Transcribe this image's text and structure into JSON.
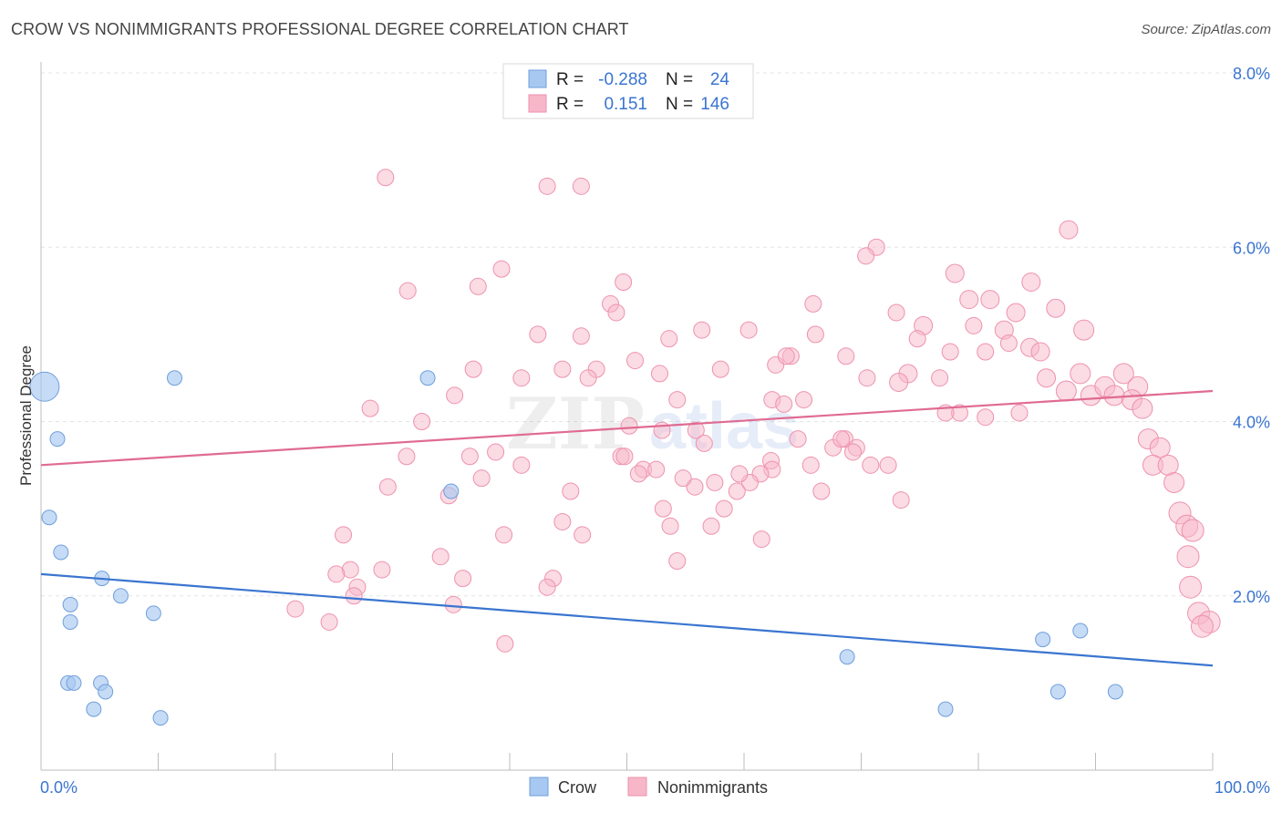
{
  "title": "CROW VS NONIMMIGRANTS PROFESSIONAL DEGREE CORRELATION CHART",
  "source": "Source: ZipAtlas.com",
  "watermark": {
    "part1": "ZIP",
    "part2": "atlas"
  },
  "chart_data": {
    "type": "scatter",
    "title": "CROW VS NONIMMIGRANTS PROFESSIONAL DEGREE CORRELATION CHART",
    "ylabel": "Professional Degree",
    "xlabel": "",
    "xlim": [
      0,
      100
    ],
    "ylim": [
      0,
      8.0
    ],
    "x_tick_labels": {
      "left": "0.0%",
      "right": "100.0%"
    },
    "y_ticks": [
      {
        "value": 2.0,
        "label": "2.0%"
      },
      {
        "value": 4.0,
        "label": "4.0%"
      },
      {
        "value": 6.0,
        "label": "6.0%"
      },
      {
        "value": 8.0,
        "label": "8.0%"
      }
    ],
    "grid": true,
    "legend_position": "top-center",
    "colors": {
      "crow_fill": "#a7c8f0",
      "crow_stroke": "#6f9fdc",
      "crow_line": "#3a75d0",
      "non_fill": "#f7b7c9",
      "non_stroke": "#ee92ae",
      "non_line": "#e06b92",
      "value_text": "#3a75d0"
    },
    "stats": [
      {
        "r_label": "R = ",
        "r_value": "-0.288",
        "n_label": "N = ",
        "n_value": "24"
      },
      {
        "r_label": "R = ",
        "r_value": "0.151",
        "n_label": "N = ",
        "n_value": "146"
      }
    ],
    "series": [
      {
        "name": "Crow",
        "trend": {
          "x": [
            0,
            100
          ],
          "y": [
            2.25,
            1.2
          ]
        },
        "points": [
          [
            0.3,
            4.4,
            16
          ],
          [
            1.4,
            3.8,
            8
          ],
          [
            0.7,
            2.9,
            8
          ],
          [
            1.7,
            2.5,
            8
          ],
          [
            2.5,
            1.9,
            8
          ],
          [
            2.5,
            1.7,
            8
          ],
          [
            2.3,
            1.0,
            8
          ],
          [
            2.8,
            1.0,
            8
          ],
          [
            5.1,
            1.0,
            8
          ],
          [
            5.5,
            0.9,
            8
          ],
          [
            4.5,
            0.7,
            8
          ],
          [
            5.2,
            2.2,
            8
          ],
          [
            6.8,
            2.0,
            8
          ],
          [
            9.6,
            1.8,
            8
          ],
          [
            10.2,
            0.6,
            8
          ],
          [
            11.4,
            4.5,
            8
          ],
          [
            33.0,
            4.5,
            8
          ],
          [
            35.0,
            3.2,
            8
          ],
          [
            68.8,
            1.3,
            8
          ],
          [
            77.2,
            0.7,
            8
          ],
          [
            85.5,
            1.5,
            8
          ],
          [
            86.8,
            0.9,
            8
          ],
          [
            88.7,
            1.6,
            8
          ],
          [
            91.7,
            0.9,
            8
          ]
        ]
      },
      {
        "name": "Nonimmigrants",
        "trend": {
          "x": [
            0,
            100
          ],
          "y": [
            3.5,
            4.35
          ]
        },
        "points": [
          [
            29.4,
            6.8,
            9
          ],
          [
            43.2,
            6.7,
            9
          ],
          [
            46.1,
            6.7,
            9
          ],
          [
            87.7,
            6.2,
            10
          ],
          [
            71.3,
            6.0,
            9
          ],
          [
            70.4,
            5.9,
            9
          ],
          [
            78.0,
            5.7,
            10
          ],
          [
            84.5,
            5.6,
            10
          ],
          [
            79.2,
            5.4,
            10
          ],
          [
            81.0,
            5.4,
            10
          ],
          [
            86.6,
            5.3,
            10
          ],
          [
            83.2,
            5.25,
            10
          ],
          [
            73.0,
            5.25,
            9
          ],
          [
            75.3,
            5.1,
            10
          ],
          [
            79.6,
            5.1,
            9
          ],
          [
            82.2,
            5.05,
            10
          ],
          [
            89.0,
            5.05,
            11
          ],
          [
            84.4,
            4.85,
            10
          ],
          [
            85.3,
            4.8,
            10
          ],
          [
            82.6,
            4.9,
            9
          ],
          [
            80.6,
            4.8,
            9
          ],
          [
            77.6,
            4.8,
            9
          ],
          [
            74.8,
            4.95,
            9
          ],
          [
            74.0,
            4.55,
            10
          ],
          [
            73.2,
            4.45,
            10
          ],
          [
            76.7,
            4.5,
            9
          ],
          [
            78.4,
            4.1,
            9
          ],
          [
            80.6,
            4.05,
            9
          ],
          [
            77.2,
            4.1,
            9
          ],
          [
            83.5,
            4.1,
            9
          ],
          [
            85.8,
            4.5,
            10
          ],
          [
            87.5,
            4.35,
            11
          ],
          [
            88.7,
            4.55,
            11
          ],
          [
            89.6,
            4.3,
            11
          ],
          [
            90.8,
            4.4,
            11
          ],
          [
            91.6,
            4.3,
            11
          ],
          [
            92.4,
            4.55,
            11
          ],
          [
            93.6,
            4.4,
            11
          ],
          [
            93.1,
            4.25,
            11
          ],
          [
            94.0,
            4.15,
            11
          ],
          [
            94.5,
            3.8,
            11
          ],
          [
            95.5,
            3.7,
            11
          ],
          [
            94.9,
            3.5,
            11
          ],
          [
            96.2,
            3.5,
            11
          ],
          [
            96.7,
            3.3,
            11
          ],
          [
            97.2,
            2.95,
            12
          ],
          [
            97.8,
            2.8,
            12
          ],
          [
            98.3,
            2.75,
            12
          ],
          [
            97.9,
            2.45,
            12
          ],
          [
            98.1,
            2.1,
            12
          ],
          [
            98.8,
            1.8,
            12
          ],
          [
            99.7,
            1.7,
            12
          ],
          [
            99.1,
            1.65,
            12
          ],
          [
            68.7,
            4.75,
            9
          ],
          [
            70.5,
            4.5,
            9
          ],
          [
            64.0,
            4.75,
            9
          ],
          [
            62.7,
            4.65,
            9
          ],
          [
            63.6,
            4.75,
            9
          ],
          [
            65.1,
            4.25,
            9
          ],
          [
            62.4,
            4.25,
            9
          ],
          [
            63.4,
            4.2,
            9
          ],
          [
            65.9,
            5.35,
            9
          ],
          [
            66.1,
            5.0,
            9
          ],
          [
            60.4,
            5.05,
            9
          ],
          [
            56.4,
            5.05,
            9
          ],
          [
            58.0,
            4.6,
            9
          ],
          [
            52.8,
            4.55,
            9
          ],
          [
            53.6,
            4.95,
            9
          ],
          [
            50.7,
            4.7,
            9
          ],
          [
            49.7,
            5.6,
            9
          ],
          [
            48.6,
            5.35,
            9
          ],
          [
            49.1,
            5.25,
            9
          ],
          [
            47.4,
            4.6,
            9
          ],
          [
            46.7,
            4.5,
            9
          ],
          [
            44.5,
            4.6,
            9
          ],
          [
            36.9,
            4.6,
            9
          ],
          [
            35.3,
            4.3,
            9
          ],
          [
            41.0,
            4.5,
            9
          ],
          [
            39.3,
            5.75,
            9
          ],
          [
            37.3,
            5.55,
            9
          ],
          [
            31.3,
            5.5,
            9
          ],
          [
            42.4,
            5.0,
            9
          ],
          [
            46.1,
            4.98,
            9
          ],
          [
            54.3,
            4.25,
            9
          ],
          [
            55.9,
            3.9,
            9
          ],
          [
            56.6,
            3.75,
            9
          ],
          [
            50.2,
            3.95,
            9
          ],
          [
            49.5,
            3.6,
            9
          ],
          [
            51.4,
            3.45,
            9
          ],
          [
            52.5,
            3.45,
            9
          ],
          [
            57.5,
            3.3,
            9
          ],
          [
            62.3,
            3.55,
            9
          ],
          [
            62.4,
            3.45,
            9
          ],
          [
            65.7,
            3.5,
            9
          ],
          [
            66.6,
            3.2,
            9
          ],
          [
            67.6,
            3.7,
            9
          ],
          [
            68.6,
            3.8,
            9
          ],
          [
            69.6,
            3.7,
            9
          ],
          [
            70.8,
            3.5,
            9
          ],
          [
            69.3,
            3.65,
            9
          ],
          [
            68.3,
            3.8,
            9
          ],
          [
            73.4,
            3.1,
            9
          ],
          [
            72.3,
            3.5,
            9
          ],
          [
            64.6,
            3.8,
            9
          ],
          [
            61.4,
            3.4,
            9
          ],
          [
            60.5,
            3.3,
            9
          ],
          [
            59.4,
            3.2,
            9
          ],
          [
            58.3,
            3.0,
            9
          ],
          [
            59.6,
            3.4,
            9
          ],
          [
            57.2,
            2.8,
            9
          ],
          [
            55.8,
            3.25,
            9
          ],
          [
            54.8,
            3.35,
            9
          ],
          [
            53.1,
            3.0,
            9
          ],
          [
            53.7,
            2.8,
            9
          ],
          [
            54.3,
            2.4,
            9
          ],
          [
            61.5,
            2.65,
            9
          ],
          [
            49.8,
            3.6,
            9
          ],
          [
            46.2,
            2.7,
            9
          ],
          [
            44.5,
            2.85,
            9
          ],
          [
            43.7,
            2.2,
            9
          ],
          [
            43.2,
            2.1,
            9
          ],
          [
            45.2,
            3.2,
            9
          ],
          [
            41.0,
            3.5,
            9
          ],
          [
            38.8,
            3.65,
            9
          ],
          [
            36.6,
            3.6,
            9
          ],
          [
            37.6,
            3.35,
            9
          ],
          [
            34.8,
            3.15,
            9
          ],
          [
            31.2,
            3.6,
            9
          ],
          [
            28.1,
            4.15,
            9
          ],
          [
            29.6,
            3.25,
            9
          ],
          [
            32.5,
            4.0,
            9
          ],
          [
            35.2,
            1.9,
            9
          ],
          [
            39.5,
            2.7,
            9
          ],
          [
            36.0,
            2.2,
            9
          ],
          [
            34.1,
            2.45,
            9
          ],
          [
            29.1,
            2.3,
            9
          ],
          [
            25.8,
            2.7,
            9
          ],
          [
            26.4,
            2.3,
            9
          ],
          [
            27.0,
            2.1,
            9
          ],
          [
            26.7,
            2.0,
            9
          ],
          [
            25.2,
            2.25,
            9
          ],
          [
            24.6,
            1.7,
            9
          ],
          [
            21.7,
            1.85,
            9
          ],
          [
            39.6,
            1.45,
            9
          ],
          [
            53.0,
            3.9,
            9
          ],
          [
            51.0,
            3.4,
            9
          ]
        ]
      }
    ]
  }
}
